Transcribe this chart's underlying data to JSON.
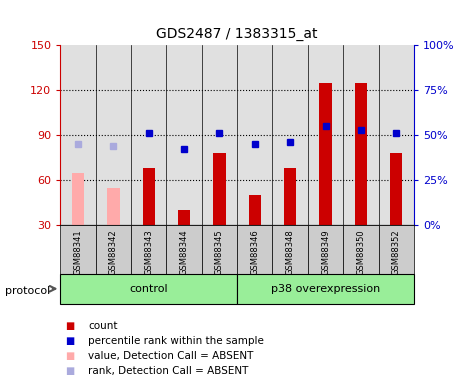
{
  "title": "GDS2487 / 1383315_at",
  "samples": [
    "GSM88341",
    "GSM88342",
    "GSM88343",
    "GSM88344",
    "GSM88345",
    "GSM88346",
    "GSM88348",
    "GSM88349",
    "GSM88350",
    "GSM88352"
  ],
  "count_values": [
    null,
    null,
    68,
    40,
    78,
    50,
    68,
    125,
    125,
    78
  ],
  "count_absent": [
    65,
    55,
    null,
    null,
    null,
    null,
    null,
    null,
    null,
    null
  ],
  "rank_values": [
    null,
    null,
    51,
    42,
    51,
    45,
    46,
    55,
    53,
    51
  ],
  "rank_absent": [
    45,
    44,
    null,
    null,
    null,
    null,
    null,
    null,
    null,
    null
  ],
  "ylim_left": [
    30,
    150
  ],
  "ylim_right": [
    0,
    100
  ],
  "yticks_left": [
    30,
    60,
    90,
    120,
    150
  ],
  "yticks_right": [
    0,
    25,
    50,
    75,
    100
  ],
  "group_labels": [
    "control",
    "p38 overexpression"
  ],
  "color_count": "#cc0000",
  "color_count_absent": "#ffaaaa",
  "color_rank": "#0000cc",
  "color_rank_absent": "#aaaadd",
  "color_group_bg": "#99ee99",
  "color_sample_bg": "#cccccc",
  "bar_width": 0.35,
  "marker_size": 5
}
